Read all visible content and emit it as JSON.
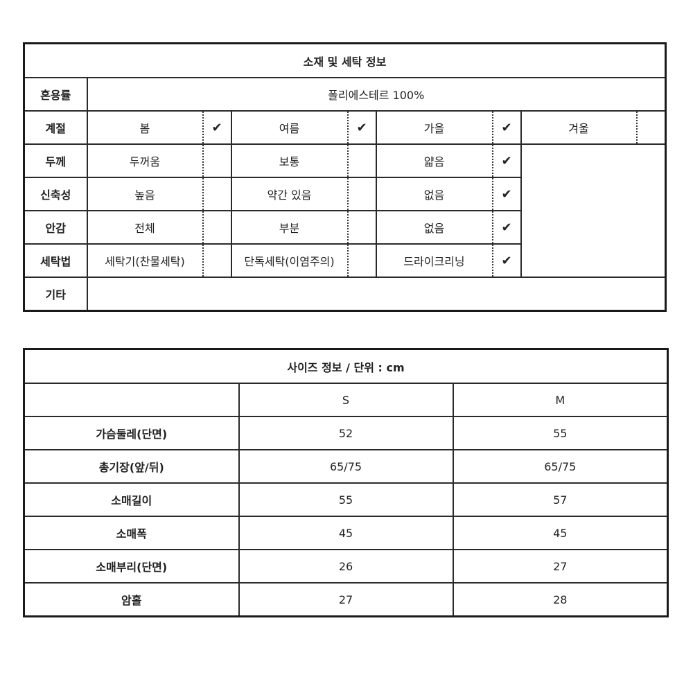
{
  "material_table": {
    "title": "소재 및 세탁 정보",
    "check_icon": "✔",
    "rows": [
      {
        "label": "혼용률",
        "value": "폴리에스테르 100%"
      },
      {
        "label": "계절",
        "options": [
          {
            "text": "봄",
            "checked": true
          },
          {
            "text": "여름",
            "checked": true
          },
          {
            "text": "가을",
            "checked": true
          },
          {
            "text": "겨울",
            "checked": false
          }
        ]
      },
      {
        "label": "두께",
        "options": [
          {
            "text": "두꺼움",
            "checked": false
          },
          {
            "text": "보통",
            "checked": false
          },
          {
            "text": "얇음",
            "checked": true
          }
        ]
      },
      {
        "label": "신축성",
        "options": [
          {
            "text": "높음",
            "checked": false
          },
          {
            "text": "약간 있음",
            "checked": false
          },
          {
            "text": "없음",
            "checked": true
          }
        ]
      },
      {
        "label": "안감",
        "options": [
          {
            "text": "전체",
            "checked": false
          },
          {
            "text": "부분",
            "checked": false
          },
          {
            "text": "없음",
            "checked": true
          }
        ]
      },
      {
        "label": "세탁법",
        "options": [
          {
            "text": "세탁기(찬물세탁)",
            "checked": false
          },
          {
            "text": "단독세탁(이염주의)",
            "checked": false
          },
          {
            "text": "드라이크리닝",
            "checked": true
          }
        ]
      },
      {
        "label": "기타",
        "value": ""
      }
    ]
  },
  "size_table": {
    "title": "사이즈 정보 / 단위 : cm",
    "columns": [
      "",
      "S",
      "M"
    ],
    "rows": [
      [
        "가슴둘레(단면)",
        "52",
        "55"
      ],
      [
        "총기장(앞/뒤)",
        "65/75",
        "65/75"
      ],
      [
        "소매길이",
        "55",
        "57"
      ],
      [
        "소매폭",
        "45",
        "45"
      ],
      [
        "소매부리(단면)",
        "26",
        "27"
      ],
      [
        "암홀",
        "27",
        "28"
      ]
    ]
  }
}
